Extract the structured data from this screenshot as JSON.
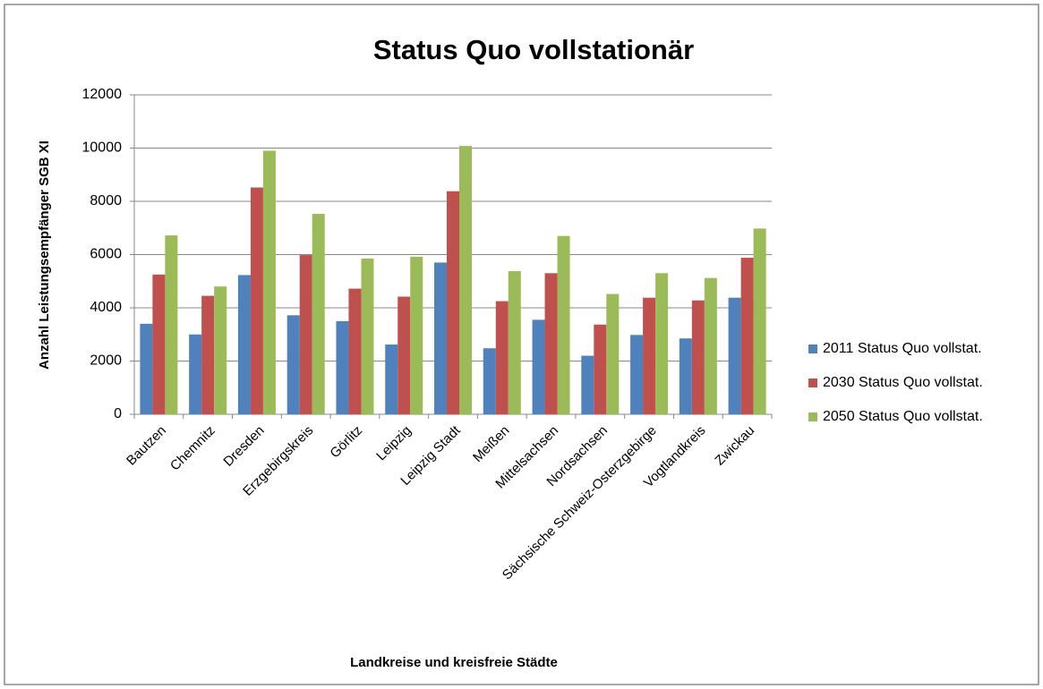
{
  "chart_data": {
    "type": "bar",
    "title": "Status Quo vollstationär",
    "x_label": "Landkreise und kreisfreie Städte",
    "y_label": "Anzahl Leistungsempfänger SGB XI",
    "categories": [
      "Bautzen",
      "Chemnitz",
      "Dresden",
      "Erzgebirgskreis",
      "Görlitz",
      "Leipzig",
      "Leipzig Stadt",
      "Meißen",
      "Mittelsachsen",
      "Nordsachsen",
      "Sächsische Schweiz-Osterzgebirge",
      "Vogtlandkreis",
      "Zwickau"
    ],
    "series": [
      {
        "name": "2011 Status Quo vollstat.",
        "color": "#4f81bd",
        "values": [
          3400,
          3000,
          5230,
          3720,
          3500,
          2620,
          5700,
          2480,
          3550,
          2200,
          2980,
          2850,
          4380
        ]
      },
      {
        "name": "2030 Status Quo vollstat.",
        "color": "#c0504d",
        "values": [
          5250,
          4450,
          8520,
          5980,
          4720,
          4420,
          8380,
          4250,
          5300,
          3370,
          4380,
          4280,
          5880
        ]
      },
      {
        "name": "2050 Status Quo vollstat.",
        "color": "#9bbb59",
        "values": [
          6720,
          4800,
          9900,
          7530,
          5850,
          5920,
          10080,
          5380,
          6700,
          4520,
          5300,
          5120,
          6980
        ]
      }
    ],
    "ylim": [
      0,
      12000
    ],
    "yticks": [
      0,
      2000,
      4000,
      6000,
      8000,
      10000,
      12000
    ],
    "grid": true,
    "legend": "right"
  }
}
